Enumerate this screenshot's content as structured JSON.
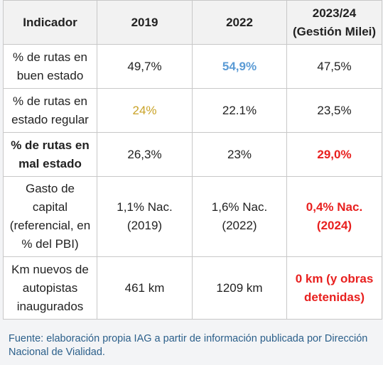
{
  "table": {
    "header": [
      "Indicador",
      "2019",
      "2022",
      "2023/24 (Gestión Milei)"
    ],
    "rows": [
      [
        "% de rutas en buen estado",
        "49,7%",
        "54,9%",
        "47,5%"
      ],
      [
        "% de rutas en estado regular",
        "24%",
        "22.1%",
        "23,5%"
      ],
      [
        "% de rutas en mal estado",
        "26,3%",
        "23%",
        "29,0%"
      ],
      [
        "Gasto de capital (referencial, en % del PBI)",
        "1,1% Nac. (2019)",
        "1,6% Nac. (2022)",
        "0,4% Nac. (2024)"
      ],
      [
        "Km nuevos de autopistas inaugurados",
        "461 km",
        "1209 km",
        "0 km (y obras detenidas)"
      ]
    ]
  },
  "footer": {
    "source": "Fuente: elaboración propia IAG a partir de información publicada por Dirección Nacional de Vialidad."
  }
}
